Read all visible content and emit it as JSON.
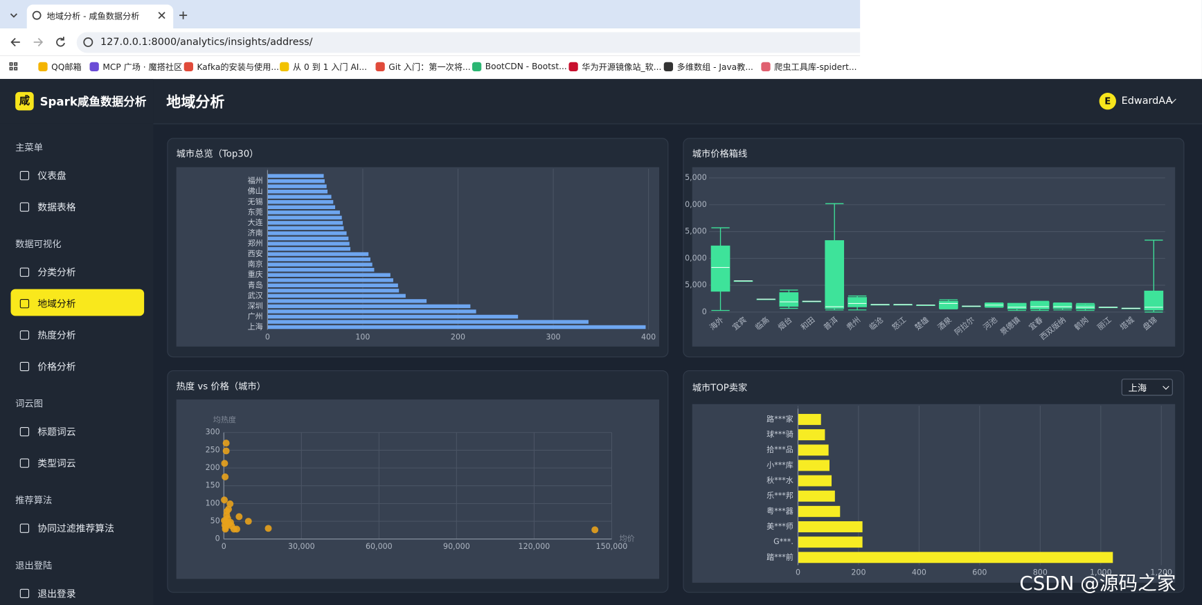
{
  "browser": {
    "tab_title": "地域分析 - 咸鱼数据分析",
    "url": "127.0.0.1:8000/analytics/insights/address/",
    "bookmarks": [
      "QQ邮箱",
      "MCP 广场 · 魔搭社区",
      "Kafka的安装与使用...",
      "从 0 到 1 入门 AI...",
      "Git 入门：第一次将...",
      "BootCDN - Bootst...",
      "华为开源镜像站_软...",
      "多维数组 - Java教...",
      "爬虫工具库-spidert..."
    ]
  },
  "sidebar": {
    "brand_logo": "咸",
    "brand": "Spark咸鱼数据分析",
    "groups": [
      {
        "label": "主菜单",
        "items": [
          {
            "label": "仪表盘"
          },
          {
            "label": "数据表格"
          }
        ]
      },
      {
        "label": "数据可视化",
        "items": [
          {
            "label": "分类分析"
          },
          {
            "label": "地域分析",
            "active": true
          },
          {
            "label": "热度分析"
          },
          {
            "label": "价格分析"
          }
        ]
      },
      {
        "label": "词云图",
        "items": [
          {
            "label": "标题词云"
          },
          {
            "label": "类型词云"
          }
        ]
      },
      {
        "label": "推荐算法",
        "items": [
          {
            "label": "协同过滤推荐算法"
          }
        ]
      },
      {
        "label": "退出登陆",
        "items": [
          {
            "label": "退出登录"
          }
        ]
      }
    ]
  },
  "header": {
    "title": "地域分析",
    "user_initial": "E",
    "user_name": "EdwardAA"
  },
  "chart_data": [
    {
      "type": "bar",
      "orientation": "horizontal",
      "title": "城市总览（Top30）",
      "color": "#6ea6f0",
      "categories": [
        null,
        "福州",
        null,
        "佛山",
        null,
        "无锡",
        null,
        "东莞",
        null,
        "大连",
        null,
        "济南",
        null,
        "郑州",
        null,
        "西安",
        null,
        "南京",
        null,
        "重庆",
        null,
        "青岛",
        null,
        "武汉",
        null,
        "深圳",
        null,
        "广州",
        null,
        "上海"
      ],
      "values": [
        59,
        60,
        62,
        63,
        67,
        69,
        71,
        76,
        78,
        79,
        80,
        83,
        85,
        86,
        87,
        106,
        108,
        110,
        112,
        129,
        132,
        137,
        138,
        145,
        167,
        213,
        219,
        263,
        337,
        397
      ],
      "xlim": [
        0,
        400
      ],
      "xticks": [
        0,
        100,
        200,
        300,
        400
      ],
      "grid": true
    },
    {
      "type": "box",
      "title": "城市价格箱线",
      "color": "#3ee39a",
      "categories": [
        "海外",
        "宜宾",
        "临高",
        "烟台",
        "和田",
        "普洱",
        "贵州",
        "临沧",
        "怒江",
        "楚雄",
        "酒泉",
        "阿拉尔",
        "河池",
        "景德镇",
        "宜春",
        "西双版纳",
        "鹤岗",
        "丽江",
        "塔城",
        "盘锦"
      ],
      "values": [
        [
          300,
          3900,
          8300,
          12300,
          15700
        ],
        [
          5800,
          5800,
          5800,
          5800,
          5800
        ],
        [
          2400,
          2400,
          2400,
          2400,
          2400
        ],
        [
          700,
          1100,
          1900,
          3600,
          4100
        ],
        [
          2000,
          2000,
          2000,
          2000,
          2000
        ],
        [
          400,
          700,
          1000,
          13300,
          20200
        ],
        [
          400,
          1000,
          1600,
          2700,
          3000
        ],
        [
          1400,
          1400,
          1400,
          1400,
          1400
        ],
        [
          1400,
          1400,
          1400,
          1400,
          1400
        ],
        [
          1300,
          1300,
          1300,
          1300,
          1300
        ],
        [
          600,
          700,
          1600,
          2000,
          2300
        ],
        [
          1100,
          1100,
          1100,
          1100,
          1100
        ],
        [
          900,
          1000,
          1300,
          1600,
          1700
        ],
        [
          300,
          600,
          900,
          1600,
          1600
        ],
        [
          300,
          600,
          1000,
          1900,
          2000
        ],
        [
          400,
          700,
          1000,
          1600,
          1700
        ],
        [
          300,
          600,
          900,
          1400,
          1600
        ],
        [
          900,
          900,
          900,
          900,
          900
        ],
        [
          700,
          700,
          700,
          700,
          700
        ],
        [
          0,
          400,
          900,
          3900,
          13400
        ]
      ],
      "ylim": [
        0,
        25000
      ],
      "yticks": [
        0,
        {
          "value": 5000,
          "label": "5,000"
        },
        {
          "value": 10000,
          "label": "0,000"
        },
        {
          "value": 15000,
          "label": "5,000"
        },
        {
          "value": 20000,
          "label": "0,000"
        },
        {
          "value": 25000,
          "label": "5,000"
        }
      ],
      "grid": true
    },
    {
      "type": "scatter",
      "title": "热度 vs 价格（城市）",
      "color": "#e8a21c",
      "x_label": "均价",
      "y_label": "均热度",
      "x": [
        900,
        900,
        300,
        500,
        200,
        2400,
        1200,
        800,
        5900,
        9500,
        3900,
        5000,
        17200,
        143500,
        400,
        1500,
        600,
        2000,
        3000,
        1100,
        200,
        1800,
        700,
        2600
      ],
      "values": [
        270,
        248,
        213,
        175,
        110,
        99,
        78,
        50,
        63,
        50,
        28,
        28,
        30,
        26,
        39,
        58,
        28,
        43,
        37,
        67,
        52,
        84,
        33,
        47
      ],
      "xlim": [
        0,
        150000
      ],
      "xticks": [
        0,
        {
          "value": 30000,
          "label": "30,000"
        },
        {
          "value": 60000,
          "label": "60,000"
        },
        {
          "value": 90000,
          "label": "90,000"
        },
        {
          "value": 120000,
          "label": "120,000"
        },
        {
          "value": 150000,
          "label": "150,000"
        }
      ],
      "ylim": [
        0,
        300
      ],
      "yticks": [
        0,
        50,
        100,
        150,
        200,
        250,
        300
      ],
      "grid": true
    },
    {
      "type": "bar",
      "orientation": "horizontal",
      "title": "城市TOP卖家",
      "selected_city": "上海",
      "color": "#f7ec23",
      "categories": [
        "路***家",
        "球***骑",
        "拾***品",
        "小***库",
        "秋***水",
        "乐***邦",
        "粤***器",
        "美***师",
        "G***.",
        "踏***前"
      ],
      "values": [
        76,
        89,
        101,
        104,
        111,
        122,
        139,
        213,
        213,
        1040
      ],
      "xlim": [
        0,
        1200
      ],
      "xticks": [
        0,
        200,
        400,
        600,
        800,
        {
          "value": 1000,
          "label": "1,000"
        },
        {
          "value": 1200,
          "label": "1,200"
        }
      ],
      "grid": true
    }
  ],
  "watermark": "CSDN @源码之家"
}
